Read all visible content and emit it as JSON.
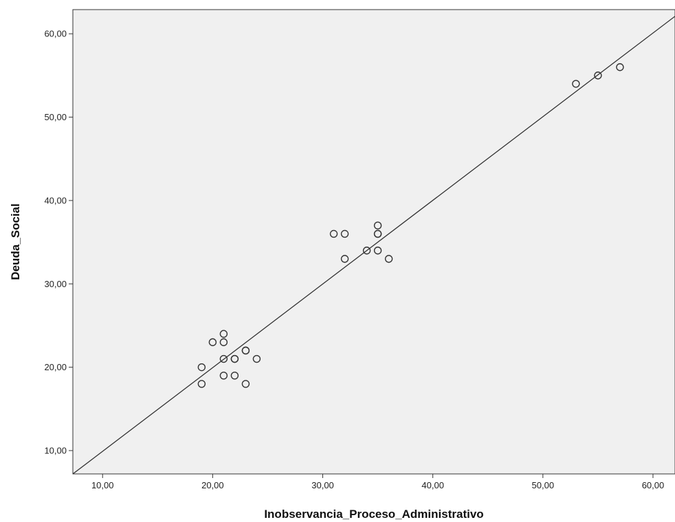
{
  "chart_data": {
    "type": "scatter",
    "xlabel": "Inobservancia_Proceso_Administrativo",
    "ylabel": "Deuda_Social",
    "xlim": [
      7.3,
      62
    ],
    "ylim": [
      7.2,
      62.9
    ],
    "x_ticks": [
      10,
      20,
      30,
      40,
      50,
      60
    ],
    "y_ticks": [
      10,
      20,
      30,
      40,
      50,
      60
    ],
    "x_tick_labels": [
      "10,00",
      "20,00",
      "30,00",
      "40,00",
      "50,00",
      "60,00"
    ],
    "y_tick_labels": [
      "10,00",
      "20,00",
      "30,00",
      "40,00",
      "50,00",
      "60,00"
    ],
    "grid": false,
    "background_color": "#f0f0f0",
    "marker_color": "#333333",
    "line_color": "#333333",
    "points": [
      {
        "x": 19,
        "y": 20
      },
      {
        "x": 19,
        "y": 18
      },
      {
        "x": 20,
        "y": 23
      },
      {
        "x": 21,
        "y": 24
      },
      {
        "x": 21,
        "y": 23
      },
      {
        "x": 21,
        "y": 21
      },
      {
        "x": 21,
        "y": 19
      },
      {
        "x": 22,
        "y": 21
      },
      {
        "x": 22,
        "y": 21
      },
      {
        "x": 22,
        "y": 19
      },
      {
        "x": 23,
        "y": 22
      },
      {
        "x": 23,
        "y": 22
      },
      {
        "x": 23,
        "y": 18
      },
      {
        "x": 24,
        "y": 21
      },
      {
        "x": 31,
        "y": 36
      },
      {
        "x": 32,
        "y": 36
      },
      {
        "x": 32,
        "y": 33
      },
      {
        "x": 34,
        "y": 34
      },
      {
        "x": 35,
        "y": 37
      },
      {
        "x": 35,
        "y": 36
      },
      {
        "x": 35,
        "y": 36
      },
      {
        "x": 35,
        "y": 34
      },
      {
        "x": 36,
        "y": 33
      },
      {
        "x": 53,
        "y": 54
      },
      {
        "x": 55,
        "y": 55
      },
      {
        "x": 57,
        "y": 56
      }
    ],
    "fit_line": {
      "x": [
        7.3,
        62
      ],
      "y": [
        7.2,
        62.1
      ]
    }
  }
}
